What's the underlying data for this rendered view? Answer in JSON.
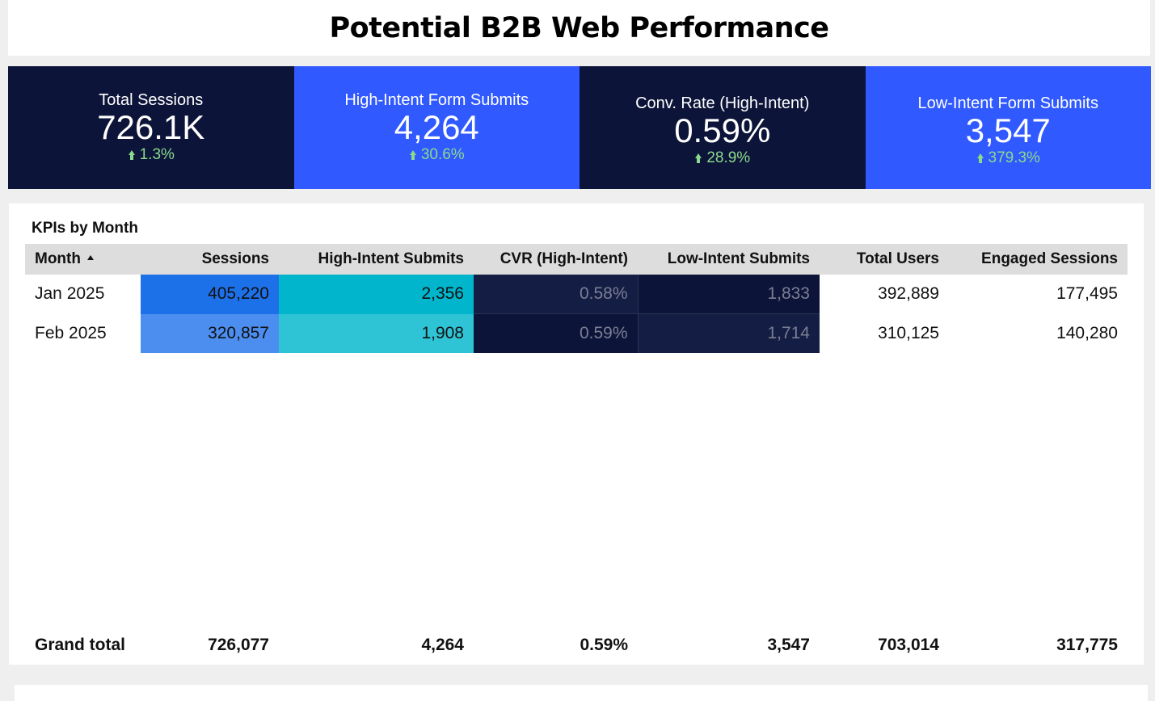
{
  "header": {
    "title": "Potential B2B Web Performance"
  },
  "kpis": [
    {
      "label": "Total Sessions",
      "value": "726.1K",
      "delta": "1.3%"
    },
    {
      "label": "High-Intent Form Submits",
      "value": "4,264",
      "delta": "30.6%"
    },
    {
      "label": "Conv. Rate (High-Intent)",
      "value": "0.59%",
      "delta": "28.9%"
    },
    {
      "label": "Low-Intent Form Submits",
      "value": "3,547",
      "delta": "379.3%"
    }
  ],
  "table": {
    "title": "KPIs by Month",
    "columns": [
      "Month",
      "Sessions",
      "High-Intent Submits",
      "CVR (High-Intent)",
      "Low-Intent Submits",
      "Total Users",
      "Engaged Sessions"
    ],
    "rows": [
      [
        "Jan 2025",
        "405,220",
        "2,356",
        "0.58%",
        "1,833",
        "392,889",
        "177,495"
      ],
      [
        "Feb 2025",
        "320,857",
        "1,908",
        "0.59%",
        "1,714",
        "310,125",
        "140,280"
      ]
    ],
    "grand_total": [
      "Grand total",
      "726,077",
      "4,264",
      "0.59%",
      "3,547",
      "703,014",
      "317,775"
    ]
  },
  "colors": {
    "dark_navy": "#0c1439",
    "bright_blue": "#3059ff",
    "delta_green": "#8bd98b"
  }
}
